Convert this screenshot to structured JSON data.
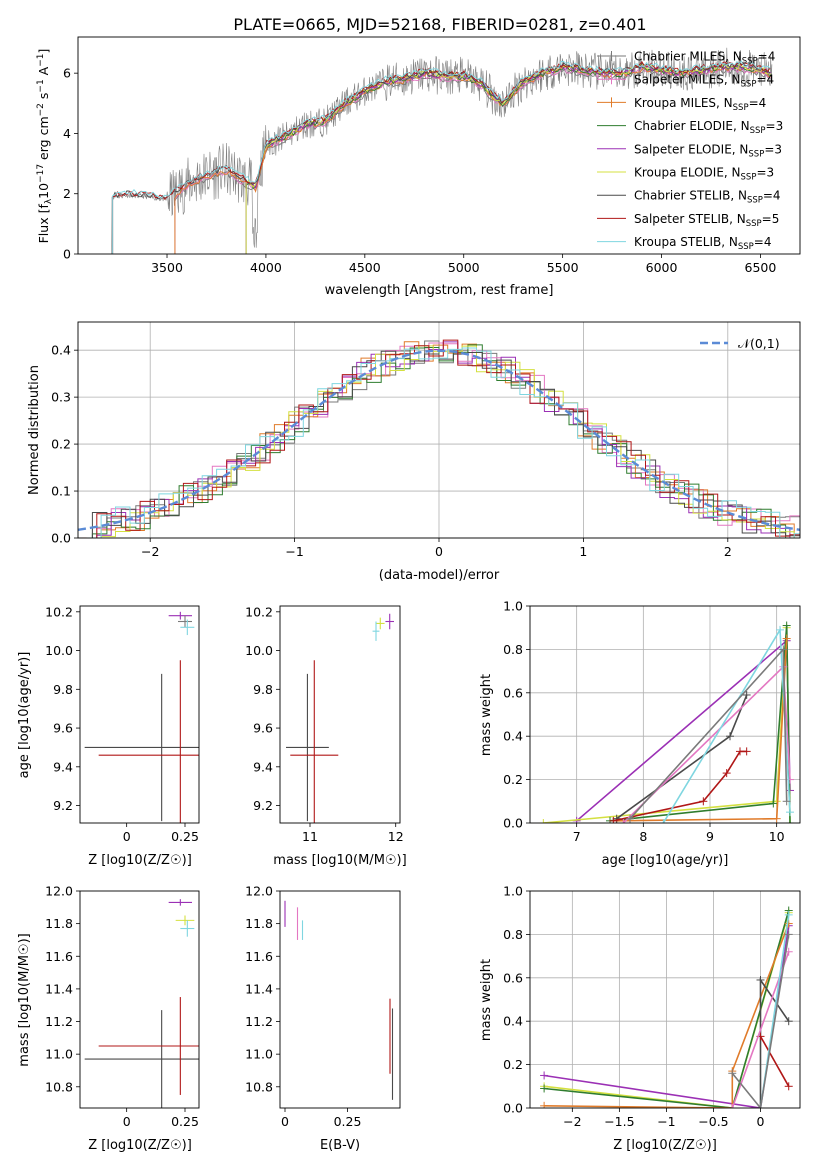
{
  "title": "PLATE=0665, MJD=52168, FIBERID=0281, z=0.401",
  "colors": {
    "Chabrier MILES": "#7a7a7a",
    "Salpeter MILES": "#e377c2",
    "Kroupa MILES": "#e07b2a",
    "Chabrier ELODIE": "#2f7d2f",
    "Salpeter ELODIE": "#9b30b5",
    "Kroupa ELODIE": "#d4e040",
    "Chabrier STELIB": "#4a4a4a",
    "Salpeter STELIB": "#b01717",
    "Kroupa STELIB": "#7fd6e0",
    "data": "#808080",
    "normal": "#5b8bd6"
  },
  "chart_data": [
    {
      "type": "line",
      "name": "spectrum",
      "xlabel": "wavelength [Angstrom, rest frame]",
      "ylabel": "Flux [f_λ 10^-17 erg cm^-2 s^-1 A^-1]",
      "xlim": [
        3050,
        6700
      ],
      "ylim": [
        0,
        7.2
      ],
      "xticks": [
        3500,
        4000,
        4500,
        5000,
        5500,
        6000,
        6500
      ],
      "yticks": [
        0,
        2,
        4,
        6
      ],
      "legend_position": "right",
      "legend": [
        "Chabrier MILES, N_SSP=4",
        "Salpeter MILES, N_SSP=4",
        "Kroupa MILES, N_SSP=4",
        "Chabrier ELODIE, N_SSP=3",
        "Salpeter ELODIE, N_SSP=3",
        "Kroupa ELODIE, N_SSP=3",
        "Chabrier STELIB, N_SSP=4",
        "Salpeter STELIB, N_SSP=5",
        "Kroupa STELIB, N_SSP=4"
      ],
      "continuum": {
        "x": [
          3220,
          3240,
          3300,
          3400,
          3500,
          3600,
          3700,
          3800,
          3900,
          3950,
          4000,
          4100,
          4200,
          4300,
          4400,
          4500,
          4600,
          4700,
          4800,
          4900,
          5000,
          5100,
          5150,
          5200,
          5300,
          5400,
          5500,
          5600,
          5700,
          5800,
          5900,
          6000,
          6100,
          6200,
          6300,
          6400,
          6500,
          6560
        ],
        "y": [
          1.9,
          1.9,
          1.95,
          1.9,
          1.8,
          2.3,
          2.6,
          2.8,
          2.4,
          2.2,
          3.6,
          3.9,
          4.3,
          4.4,
          5.0,
          5.4,
          5.7,
          5.8,
          6.0,
          5.9,
          5.9,
          5.6,
          5.2,
          5.0,
          5.7,
          6.0,
          6.2,
          6.1,
          6.0,
          6.0,
          6.2,
          6.1,
          6.0,
          6.1,
          6.2,
          6.2,
          6.1,
          6.0
        ]
      }
    },
    {
      "type": "bar",
      "name": "residuals",
      "xlabel": "(data-model)/error",
      "ylabel": "Normed distribution",
      "xlim": [
        -2.5,
        2.5
      ],
      "ylim": [
        0,
        0.46
      ],
      "xticks": [
        -2,
        -1,
        0,
        1,
        2
      ],
      "yticks": [
        0.0,
        0.1,
        0.2,
        0.3,
        0.4
      ],
      "legend": [
        "𝒩(0,1)"
      ],
      "legend_position": "top-right",
      "bin_width": 0.1
    },
    {
      "type": "scatter",
      "name": "Z-age",
      "xlabel": "Z [log10(Z/Z☉)]",
      "ylabel": "age [log10(age/yr)]",
      "xlim": [
        -0.2,
        0.31
      ],
      "ylim": [
        9.11,
        10.23
      ],
      "xticks": [
        0.0,
        0.25
      ],
      "yticks": [
        9.2,
        9.4,
        9.6,
        9.8,
        10.0,
        10.2
      ],
      "points": [
        {
          "model": "Chabrier STELIB",
          "x": 0.15,
          "y": 9.5,
          "xerr": 0.33,
          "yerr": 0.38
        },
        {
          "model": "Salpeter STELIB",
          "x": 0.23,
          "y": 9.46,
          "xerr": 0.35,
          "yerr": 0.49
        },
        {
          "model": "Salpeter ELODIE",
          "x": 0.23,
          "y": 10.18,
          "xerr": 0.05,
          "yerr": 0.02
        },
        {
          "model": "Chabrier MILES",
          "x": 0.25,
          "y": 10.15,
          "xerr": 0.03,
          "yerr": 0.03
        },
        {
          "model": "Kroupa STELIB",
          "x": 0.26,
          "y": 10.12,
          "xerr": 0.03,
          "yerr": 0.04
        }
      ]
    },
    {
      "type": "scatter",
      "name": "mass-age",
      "xlabel": "mass [log10(M/M☉)]",
      "xlim": [
        10.65,
        12.05
      ],
      "ylim": [
        9.11,
        10.23
      ],
      "xticks": [
        11,
        12
      ],
      "yticks": [
        9.2,
        9.4,
        9.6,
        9.8,
        10.0,
        10.2
      ],
      "points": [
        {
          "model": "Chabrier STELIB",
          "x": 10.97,
          "y": 9.5,
          "xerr": 0.25,
          "yerr": 0.38
        },
        {
          "model": "Salpeter STELIB",
          "x": 11.05,
          "y": 9.46,
          "xerr": 0.28,
          "yerr": 0.49
        },
        {
          "model": "Salpeter ELODIE",
          "x": 11.93,
          "y": 10.15,
          "xerr": 0.05,
          "yerr": 0.04
        },
        {
          "model": "Kroupa ELODIE",
          "x": 11.82,
          "y": 10.14,
          "xerr": 0.05,
          "yerr": 0.03
        },
        {
          "model": "Kroupa STELIB",
          "x": 11.77,
          "y": 10.1,
          "xerr": 0.04,
          "yerr": 0.05
        }
      ]
    },
    {
      "type": "line",
      "name": "age-massweight",
      "xlabel": "age [log10(age/yr)]",
      "ylabel": "mass weight",
      "xlim": [
        6.3,
        10.35
      ],
      "ylim": [
        0,
        1
      ],
      "xticks": [
        7,
        8,
        9,
        10
      ],
      "yticks": [
        0.0,
        0.2,
        0.4,
        0.6,
        0.8,
        1.0
      ]
    },
    {
      "type": "scatter",
      "name": "Z-mass",
      "xlabel": "Z [log10(Z/Z☉)]",
      "ylabel": "mass [log10(M/M☉)]",
      "xlim": [
        -0.2,
        0.31
      ],
      "ylim": [
        10.67,
        12.0
      ],
      "xticks": [
        0.0,
        0.25
      ],
      "yticks": [
        10.8,
        11.0,
        11.2,
        11.4,
        11.6,
        11.8,
        12.0
      ],
      "points": [
        {
          "model": "Chabrier STELIB",
          "x": 0.15,
          "y": 10.97,
          "xerr": 0.33,
          "yerr": 0.3
        },
        {
          "model": "Salpeter STELIB",
          "x": 0.23,
          "y": 11.05,
          "xerr": 0.35,
          "yerr": 0.3
        },
        {
          "model": "Salpeter ELODIE",
          "x": 0.23,
          "y": 11.93,
          "xerr": 0.05,
          "yerr": 0.02
        },
        {
          "model": "Kroupa ELODIE",
          "x": 0.25,
          "y": 11.82,
          "xerr": 0.04,
          "yerr": 0.03
        },
        {
          "model": "Kroupa STELIB",
          "x": 0.26,
          "y": 11.77,
          "xerr": 0.03,
          "yerr": 0.05
        }
      ]
    },
    {
      "type": "scatter",
      "name": "EBV-mass",
      "xlabel": "E(B-V)",
      "xlim": [
        -0.02,
        0.46
      ],
      "ylim": [
        10.67,
        12.0
      ],
      "xticks": [
        0.0,
        0.25
      ],
      "yticks": [
        10.8,
        11.0,
        11.2,
        11.4,
        11.6,
        11.8,
        12.0
      ],
      "points": [
        {
          "model": "Chabrier STELIB",
          "x": 0.43,
          "y": 11.0,
          "yerr": 0.28
        },
        {
          "model": "Salpeter STELIB",
          "x": 0.42,
          "y": 11.11,
          "yerr": 0.23
        },
        {
          "model": "Salpeter ELODIE",
          "x": 0.0,
          "y": 11.86,
          "yerr": 0.08
        },
        {
          "model": "Salpeter MILES",
          "x": 0.05,
          "y": 11.8,
          "yerr": 0.1
        },
        {
          "model": "Kroupa STELIB",
          "x": 0.07,
          "y": 11.76,
          "yerr": 0.06
        }
      ]
    },
    {
      "type": "line",
      "name": "Z-massweight",
      "xlabel": "Z [log10(Z/Z☉)]",
      "ylabel": "mass weight",
      "xlim": [
        -2.45,
        0.42
      ],
      "ylim": [
        0,
        1
      ],
      "xticks": [
        -2.0,
        -1.5,
        -1.0,
        -0.5,
        0.0
      ],
      "yticks": [
        0.0,
        0.2,
        0.4,
        0.6,
        0.8,
        1.0
      ]
    }
  ]
}
